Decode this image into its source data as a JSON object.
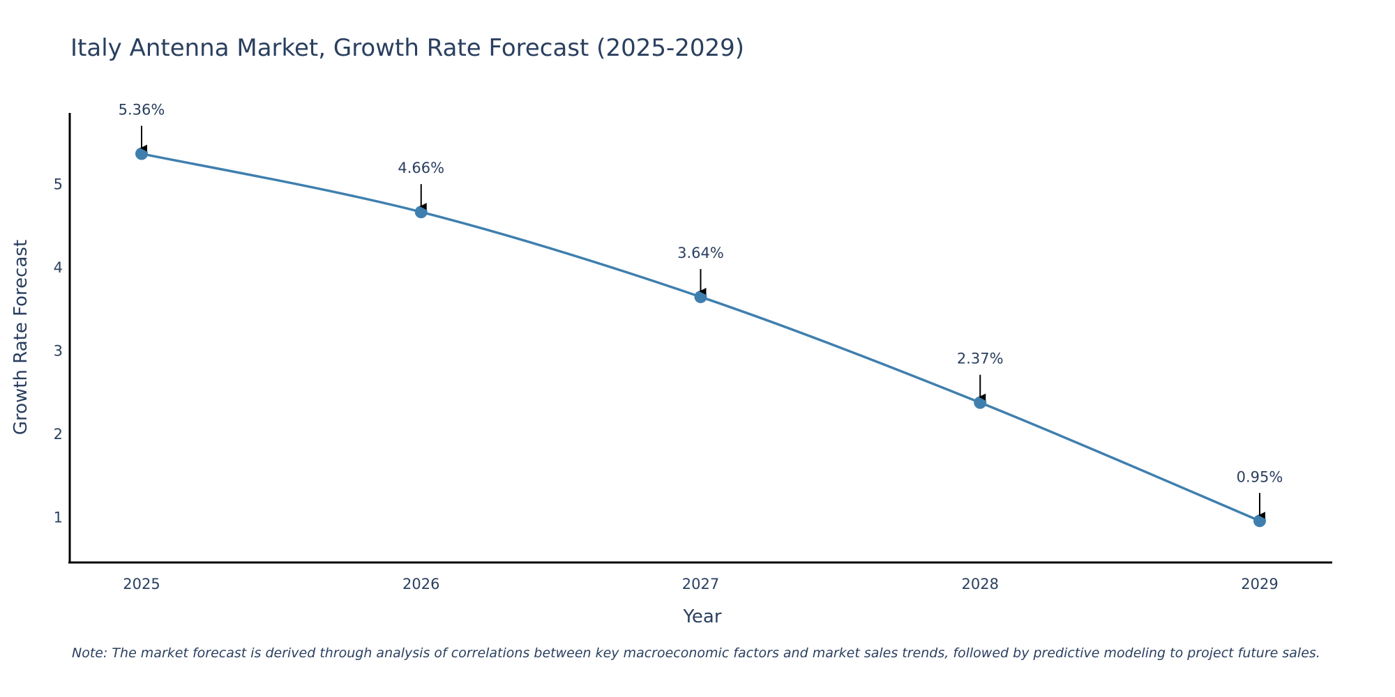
{
  "chart_data": {
    "type": "line",
    "title": "Italy Antenna Market, Growth Rate Forecast (2025-2029)",
    "xlabel": "Year",
    "ylabel": "Growth Rate Forecast",
    "categories": [
      "2025",
      "2026",
      "2027",
      "2028",
      "2029"
    ],
    "series": [
      {
        "name": "Growth Rate Forecast",
        "values": [
          5.36,
          4.66,
          3.64,
          2.37,
          0.95
        ],
        "labels": [
          "5.36%",
          "4.66%",
          "3.64%",
          "2.37%",
          "0.95%"
        ]
      }
    ],
    "yticks": [
      1,
      2,
      3,
      4,
      5
    ],
    "ylim": [
      0.45,
      5.85
    ],
    "grid": false,
    "line_color": "#3f7fae",
    "marker_color": "#3f7fae",
    "arrow_color": "#000000",
    "note": "Note: The market forecast is derived through analysis of correlations between key macroeconomic factors and market sales trends, followed by predictive modeling to project future sales."
  }
}
